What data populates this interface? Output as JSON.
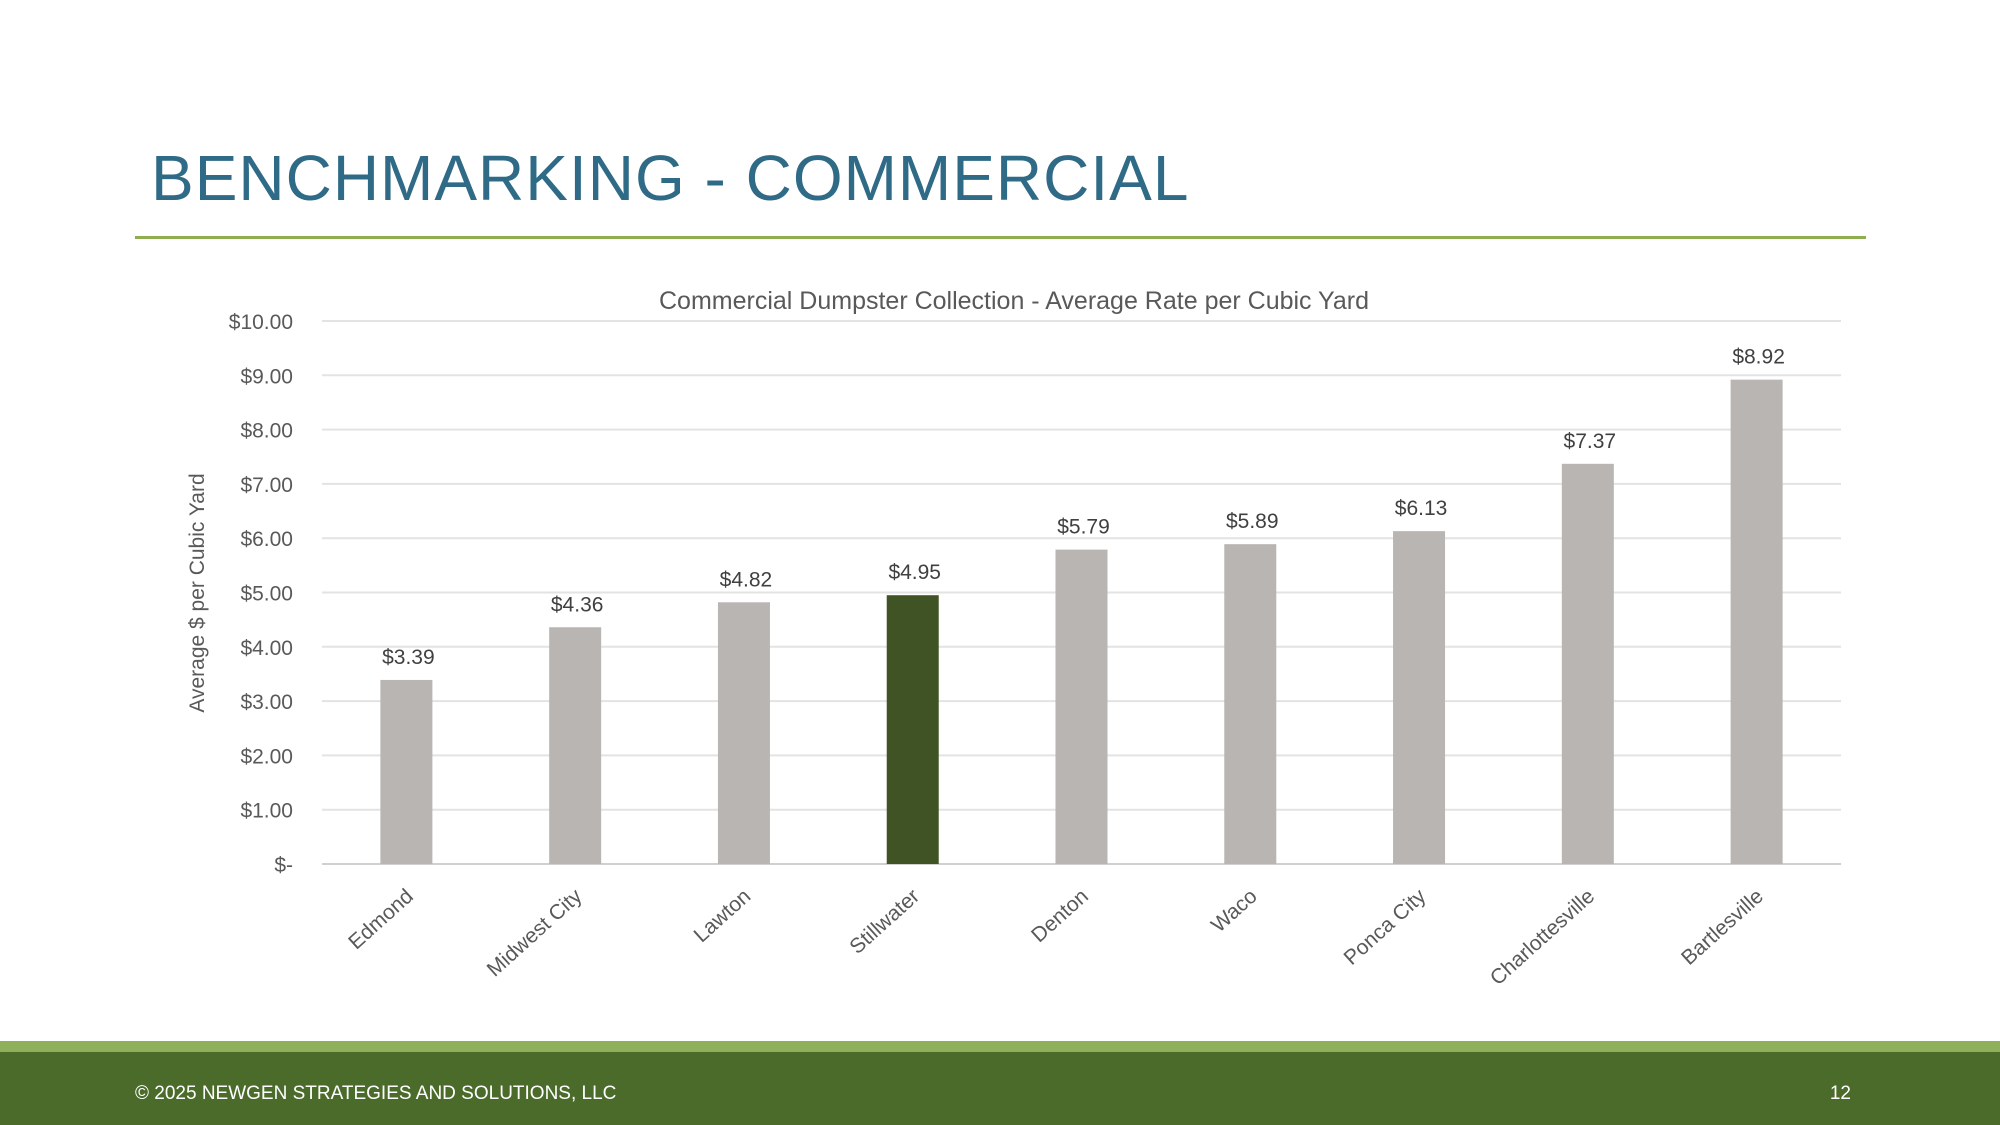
{
  "slide": {
    "title": "BENCHMARKING - COMMERCIAL",
    "footer_left": "© 2025 NEWGEN STRATEGIES AND SOLUTIONS, LLC",
    "footer_right": "12"
  },
  "colors": {
    "title": "#2f6b86",
    "rule": "#8fae50",
    "bar_default": "#b8b5b3",
    "bar_highlight": "#3f5324",
    "footer_dark": "#4b6b2b",
    "footer_light": "#8fb05a"
  },
  "chart_data": {
    "type": "bar",
    "title": "Commercial Dumpster Collection - Average Rate per Cubic Yard",
    "ylabel": "Average $ per Cubic Yard",
    "xlabel": "",
    "categories": [
      "Edmond",
      "Midwest City",
      "Lawton",
      "Stillwater",
      "Denton",
      "Waco",
      "Ponca City",
      "Charlottesville",
      "Bartlesville"
    ],
    "values": [
      3.39,
      4.36,
      4.82,
      4.95,
      5.79,
      5.89,
      6.13,
      7.37,
      8.92
    ],
    "data_labels": [
      "$3.39",
      "$4.36",
      "$4.82",
      "$4.95",
      "$5.79",
      "$5.89",
      "$6.13",
      "$7.37",
      "$8.92"
    ],
    "highlight_category": "Stillwater",
    "ylim": [
      0,
      10
    ],
    "yticks": [
      0,
      1,
      2,
      3,
      4,
      5,
      6,
      7,
      8,
      9,
      10
    ],
    "ytick_labels": [
      "$-",
      "$1.00",
      "$2.00",
      "$3.00",
      "$4.00",
      "$5.00",
      "$6.00",
      "$7.00",
      "$8.00",
      "$9.00",
      "$10.00"
    ],
    "grid": true,
    "legend": "none"
  }
}
